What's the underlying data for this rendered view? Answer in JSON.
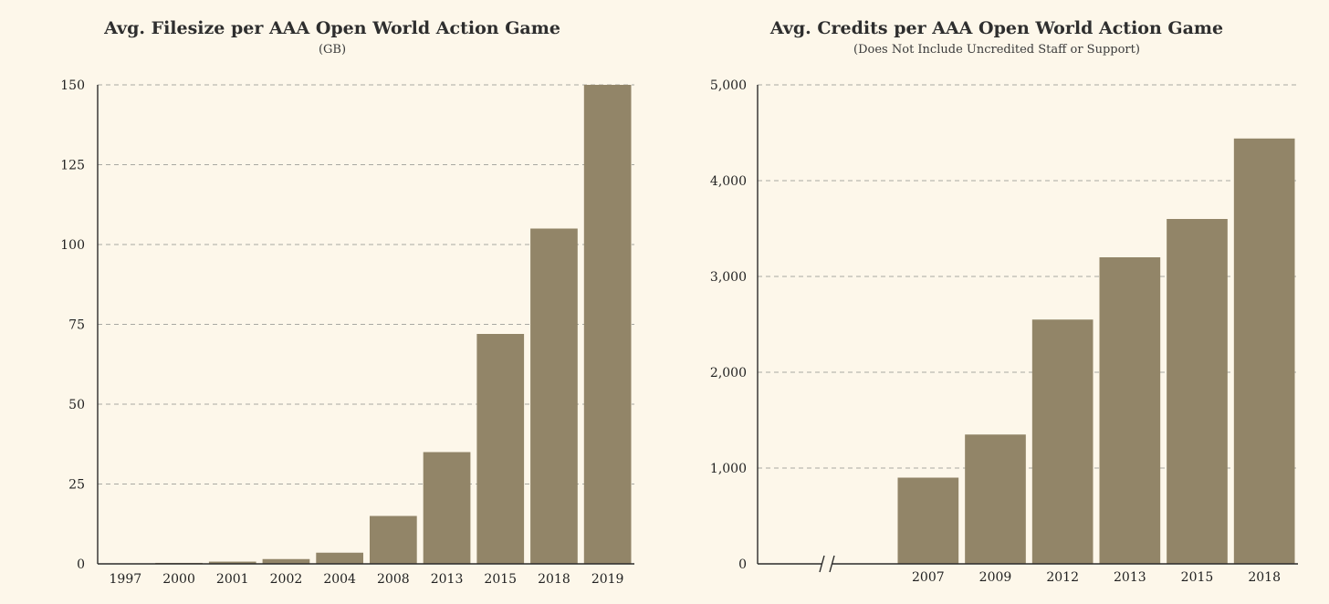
{
  "chart_data": [
    {
      "type": "bar",
      "title": "Avg. Filesize per AAA Open World Action Game",
      "subtitle": "(GB)",
      "xlabel": "",
      "ylabel": "",
      "categories": [
        "1997",
        "2000",
        "2001",
        "2002",
        "2004",
        "2008",
        "2013",
        "2015",
        "2018",
        "2019"
      ],
      "values": [
        0.1,
        0.3,
        0.7,
        1.5,
        3.5,
        15,
        35,
        72,
        105,
        150
      ],
      "ylim": [
        0,
        150
      ],
      "yticks": [
        "0",
        "25",
        "50",
        "75",
        "100",
        "125",
        "150"
      ],
      "ytick_values": [
        0,
        25,
        50,
        75,
        100,
        125,
        150
      ],
      "grid": true,
      "bar_color": "#928568"
    },
    {
      "type": "bar",
      "title": "Avg. Credits per AAA Open World Action Game",
      "subtitle": "(Does Not Include Uncredited Staff or Support)",
      "xlabel": "",
      "ylabel": "",
      "categories": [
        "2007",
        "2009",
        "2012",
        "2013",
        "2015",
        "2018"
      ],
      "values": [
        900,
        1350,
        2550,
        3200,
        3600,
        4440
      ],
      "ylim": [
        0,
        5000
      ],
      "yticks": [
        "0",
        "1,000",
        "2,000",
        "3,000",
        "4,000",
        "5,000"
      ],
      "ytick_values": [
        0,
        1000,
        2000,
        3000,
        4000,
        5000
      ],
      "grid": true,
      "axis_break": true,
      "bar_color": "#928568"
    }
  ]
}
